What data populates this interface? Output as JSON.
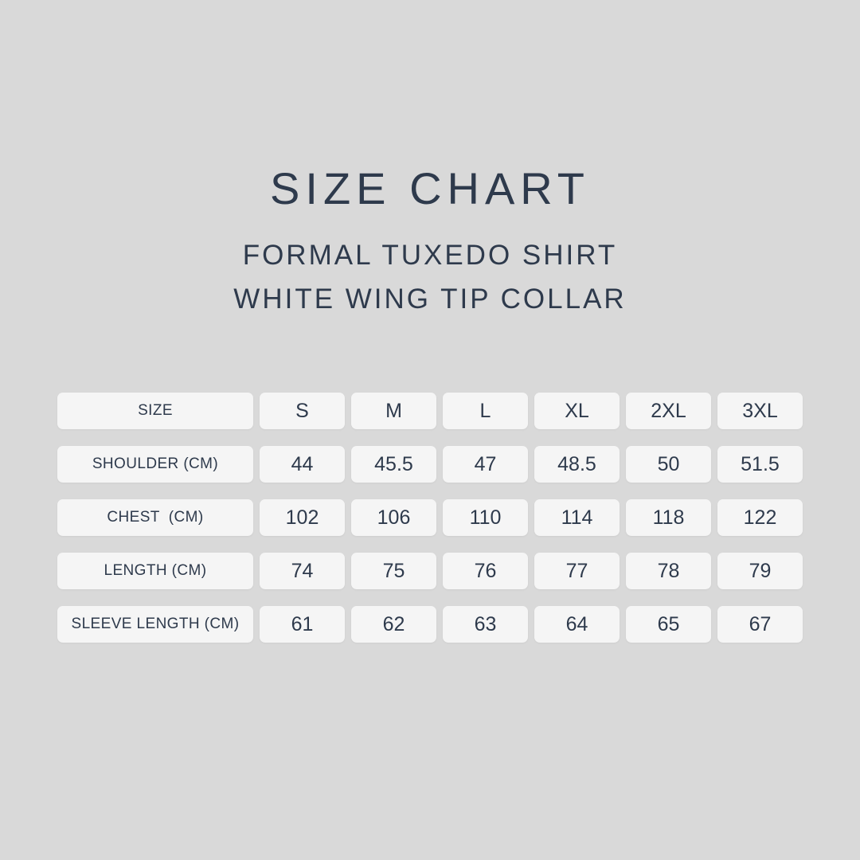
{
  "colors": {
    "background": "#d9d9d9",
    "cell_background": "#f5f5f5",
    "text": "#2e3a4c"
  },
  "header": {
    "title": "SIZE CHART",
    "subtitle_line1": "FORMAL TUXEDO SHIRT",
    "subtitle_line2": "WHITE WING TIP COLLAR"
  },
  "chart_data": {
    "type": "table",
    "columns": [
      "SIZE",
      "S",
      "M",
      "L",
      "XL",
      "2XL",
      "3XL"
    ],
    "rows": [
      {
        "label": "SHOULDER (CM)",
        "values": [
          "44",
          "45.5",
          "47",
          "48.5",
          "50",
          "51.5"
        ]
      },
      {
        "label": "CHEST  (CM)",
        "values": [
          "102",
          "106",
          "110",
          "114",
          "118",
          "122"
        ]
      },
      {
        "label": "LENGTH (CM)",
        "values": [
          "74",
          "75",
          "76",
          "77",
          "78",
          "79"
        ]
      },
      {
        "label": "SLEEVE LENGTH (CM)",
        "values": [
          "61",
          "62",
          "63",
          "64",
          "65",
          "67"
        ]
      }
    ]
  }
}
